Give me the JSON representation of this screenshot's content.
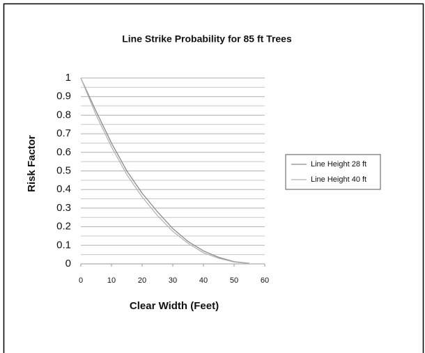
{
  "chart_data": {
    "type": "line",
    "title": "Line Strike Probability for 85 ft Trees",
    "xlabel": "Clear Width (Feet)",
    "ylabel": "Risk Factor",
    "x": [
      0,
      5,
      10,
      15,
      20,
      25,
      30,
      35,
      40,
      45,
      50,
      55
    ],
    "series": [
      {
        "name": "Line Height 28 ft",
        "color": "#8a8a8a",
        "values": [
          1,
          0.82,
          0.65,
          0.5,
          0.38,
          0.28,
          0.19,
          0.12,
          0.07,
          0.035,
          0.012,
          0.003
        ]
      },
      {
        "name": "Line Height 40 ft",
        "color": "#b4b4b4",
        "values": [
          1,
          0.8,
          0.63,
          0.48,
          0.36,
          0.26,
          0.175,
          0.11,
          0.06,
          0.03,
          0.01,
          0.002
        ]
      }
    ],
    "xlim": [
      0,
      60
    ],
    "xticks": [
      0,
      10,
      20,
      30,
      40,
      50,
      60
    ],
    "ylim": [
      0,
      1
    ],
    "yticks": [
      0,
      0.1,
      0.2,
      0.3,
      0.4,
      0.5,
      0.6,
      0.7,
      0.8,
      0.9,
      1
    ],
    "y_minor_ticks": [
      0.05,
      0.15,
      0.25,
      0.35,
      0.45,
      0.55,
      0.65,
      0.75,
      0.85,
      0.95
    ],
    "grid": true,
    "legend": "right"
  }
}
